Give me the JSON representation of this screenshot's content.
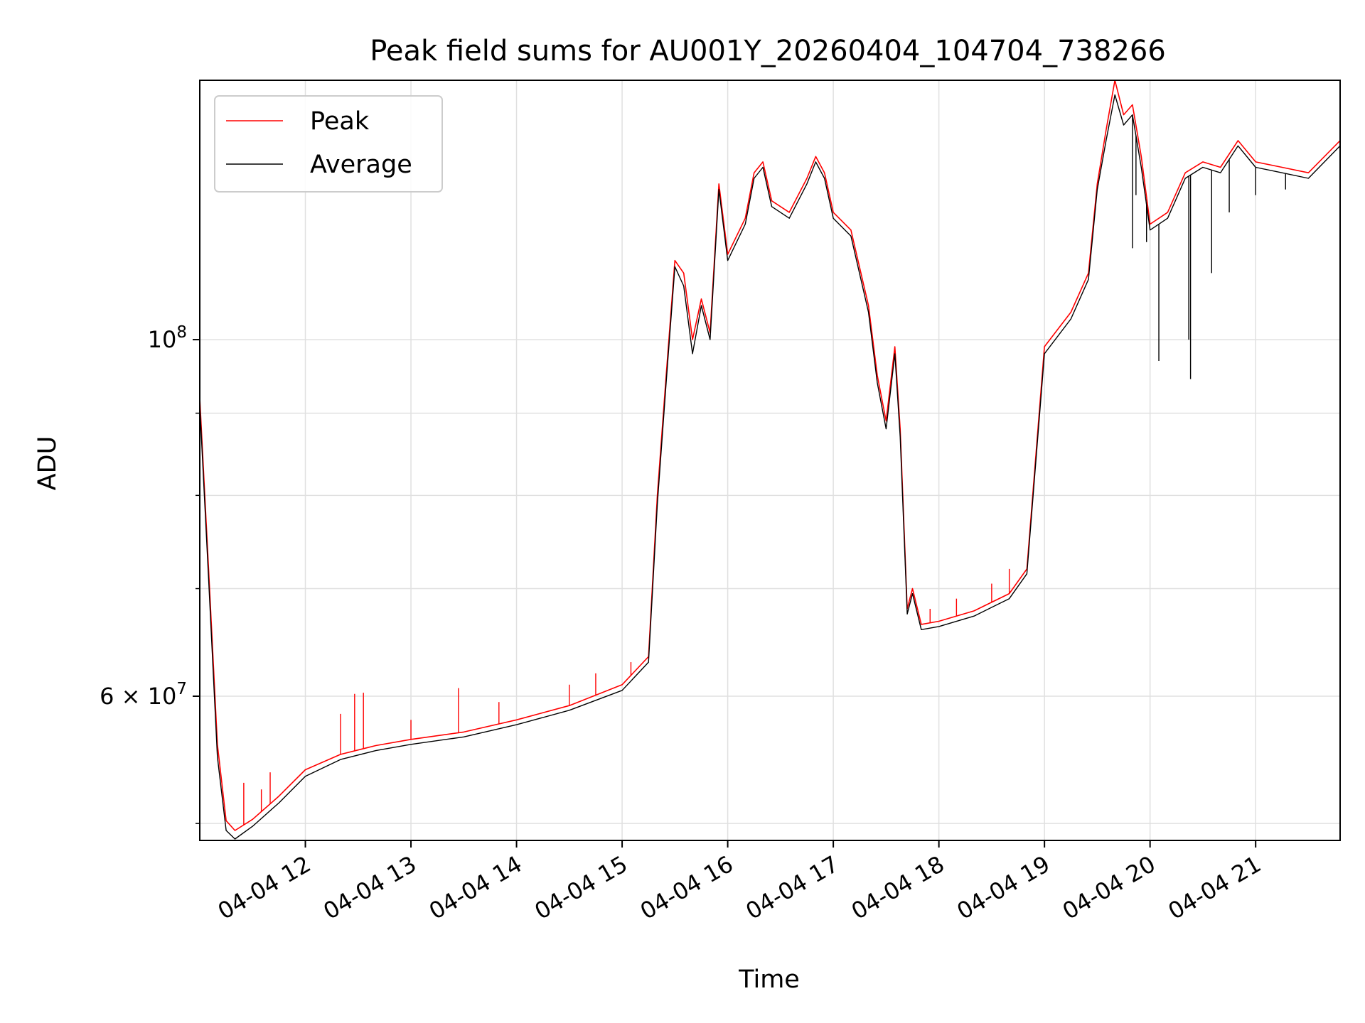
{
  "chart_data": {
    "type": "line",
    "title": "Peak field sums for AU001Y_20260404_104704_738266",
    "xlabel": "Time",
    "ylabel": "ADU",
    "yscale": "log",
    "xlim": [
      "2026-04-04 11:00",
      "2026-04-04 21:48"
    ],
    "ylim": [
      48800000,
      145000000
    ],
    "grid": true,
    "legend_position": "top-left",
    "x_ticks": [
      "04-04 12",
      "04-04 13",
      "04-04 14",
      "04-04 15",
      "04-04 16",
      "04-04 17",
      "04-04 18",
      "04-04 19",
      "04-04 20",
      "04-04 21"
    ],
    "y_major_ticks": [
      {
        "value": 100000000,
        "base": "10",
        "exp": "8"
      },
      {
        "value": 60000000,
        "coef": "6",
        "base": "10",
        "exp": "7"
      }
    ],
    "y_minor_ticks": [
      50000000,
      70000000,
      80000000,
      90000000
    ],
    "series": [
      {
        "name": "Peak",
        "color": "#ff0000",
        "points": [
          [
            "2026-04-04 11:00",
            92000000
          ],
          [
            "2026-04-04 11:05",
            72000000
          ],
          [
            "2026-04-04 11:10",
            56000000
          ],
          [
            "2026-04-04 11:15",
            50200000
          ],
          [
            "2026-04-04 11:20",
            49500000
          ],
          [
            "2026-04-04 11:30",
            50300000
          ],
          [
            "2026-04-04 11:45",
            52000000
          ],
          [
            "2026-04-04 12:00",
            54000000
          ],
          [
            "2026-04-04 12:20",
            55200000
          ],
          [
            "2026-04-04 12:40",
            55900000
          ],
          [
            "2026-04-04 13:00",
            56400000
          ],
          [
            "2026-04-04 13:30",
            57000000
          ],
          [
            "2026-04-04 14:00",
            58000000
          ],
          [
            "2026-04-04 14:30",
            59200000
          ],
          [
            "2026-04-04 15:00",
            61000000
          ],
          [
            "2026-04-04 15:15",
            63500000
          ],
          [
            "2026-04-04 15:20",
            80000000
          ],
          [
            "2026-04-04 15:25",
            95000000
          ],
          [
            "2026-04-04 15:30",
            112000000
          ],
          [
            "2026-04-04 15:35",
            110000000
          ],
          [
            "2026-04-04 15:40",
            100000000
          ],
          [
            "2026-04-04 15:45",
            106000000
          ],
          [
            "2026-04-04 15:50",
            101000000
          ],
          [
            "2026-04-04 15:55",
            125000000
          ],
          [
            "2026-04-04 16:00",
            113000000
          ],
          [
            "2026-04-04 16:10",
            119000000
          ],
          [
            "2026-04-04 16:15",
            127000000
          ],
          [
            "2026-04-04 16:20",
            129000000
          ],
          [
            "2026-04-04 16:25",
            122000000
          ],
          [
            "2026-04-04 16:35",
            120000000
          ],
          [
            "2026-04-04 16:45",
            126000000
          ],
          [
            "2026-04-04 16:50",
            130000000
          ],
          [
            "2026-04-04 16:55",
            127000000
          ],
          [
            "2026-04-04 17:00",
            120000000
          ],
          [
            "2026-04-04 17:10",
            117000000
          ],
          [
            "2026-04-04 17:20",
            105000000
          ],
          [
            "2026-04-04 17:25",
            95000000
          ],
          [
            "2026-04-04 17:30",
            89000000
          ],
          [
            "2026-04-04 17:35",
            99000000
          ],
          [
            "2026-04-04 17:38",
            88000000
          ],
          [
            "2026-04-04 17:42",
            68000000
          ],
          [
            "2026-04-04 17:45",
            70000000
          ],
          [
            "2026-04-04 17:50",
            66500000
          ],
          [
            "2026-04-04 18:00",
            66800000
          ],
          [
            "2026-04-04 18:20",
            67800000
          ],
          [
            "2026-04-04 18:40",
            69500000
          ],
          [
            "2026-04-04 18:50",
            72000000
          ],
          [
            "2026-04-04 19:00",
            99000000
          ],
          [
            "2026-04-04 19:15",
            104000000
          ],
          [
            "2026-04-04 19:25",
            110000000
          ],
          [
            "2026-04-04 19:30",
            125000000
          ],
          [
            "2026-04-04 19:35",
            135000000
          ],
          [
            "2026-04-04 19:40",
            145000000
          ],
          [
            "2026-04-04 19:45",
            138000000
          ],
          [
            "2026-04-04 19:50",
            140000000
          ],
          [
            "2026-04-04 19:55",
            130000000
          ],
          [
            "2026-04-04 20:00",
            118000000
          ],
          [
            "2026-04-04 20:10",
            120000000
          ],
          [
            "2026-04-04 20:20",
            127000000
          ],
          [
            "2026-04-04 20:30",
            129000000
          ],
          [
            "2026-04-04 20:40",
            128000000
          ],
          [
            "2026-04-04 20:50",
            133000000
          ],
          [
            "2026-04-04 21:00",
            129000000
          ],
          [
            "2026-04-04 21:15",
            128000000
          ],
          [
            "2026-04-04 21:30",
            127000000
          ],
          [
            "2026-04-04 21:48",
            133000000
          ]
        ]
      },
      {
        "name": "Average",
        "color": "#000000",
        "points": [
          [
            "2026-04-04 11:00",
            91000000
          ],
          [
            "2026-04-04 11:05",
            71000000
          ],
          [
            "2026-04-04 11:10",
            55000000
          ],
          [
            "2026-04-04 11:15",
            49500000
          ],
          [
            "2026-04-04 11:20",
            48900000
          ],
          [
            "2026-04-04 11:30",
            49800000
          ],
          [
            "2026-04-04 11:45",
            51500000
          ],
          [
            "2026-04-04 12:00",
            53500000
          ],
          [
            "2026-04-04 12:20",
            54800000
          ],
          [
            "2026-04-04 12:40",
            55500000
          ],
          [
            "2026-04-04 13:00",
            56000000
          ],
          [
            "2026-04-04 13:30",
            56600000
          ],
          [
            "2026-04-04 14:00",
            57600000
          ],
          [
            "2026-04-04 14:30",
            58800000
          ],
          [
            "2026-04-04 15:00",
            60500000
          ],
          [
            "2026-04-04 15:15",
            63000000
          ],
          [
            "2026-04-04 15:20",
            79000000
          ],
          [
            "2026-04-04 15:25",
            94000000
          ],
          [
            "2026-04-04 15:30",
            111000000
          ],
          [
            "2026-04-04 15:35",
            108000000
          ],
          [
            "2026-04-04 15:40",
            98000000
          ],
          [
            "2026-04-04 15:45",
            105000000
          ],
          [
            "2026-04-04 15:50",
            100000000
          ],
          [
            "2026-04-04 15:55",
            124000000
          ],
          [
            "2026-04-04 16:00",
            112000000
          ],
          [
            "2026-04-04 16:10",
            118000000
          ],
          [
            "2026-04-04 16:15",
            126000000
          ],
          [
            "2026-04-04 16:20",
            128000000
          ],
          [
            "2026-04-04 16:25",
            121000000
          ],
          [
            "2026-04-04 16:35",
            119000000
          ],
          [
            "2026-04-04 16:45",
            125000000
          ],
          [
            "2026-04-04 16:50",
            129000000
          ],
          [
            "2026-04-04 16:55",
            126000000
          ],
          [
            "2026-04-04 17:00",
            119000000
          ],
          [
            "2026-04-04 17:10",
            116000000
          ],
          [
            "2026-04-04 17:20",
            104000000
          ],
          [
            "2026-04-04 17:25",
            94000000
          ],
          [
            "2026-04-04 17:30",
            88000000
          ],
          [
            "2026-04-04 17:35",
            98000000
          ],
          [
            "2026-04-04 17:38",
            87000000
          ],
          [
            "2026-04-04 17:42",
            67500000
          ],
          [
            "2026-04-04 17:45",
            69500000
          ],
          [
            "2026-04-04 17:50",
            66000000
          ],
          [
            "2026-04-04 18:00",
            66300000
          ],
          [
            "2026-04-04 18:20",
            67300000
          ],
          [
            "2026-04-04 18:40",
            69000000
          ],
          [
            "2026-04-04 18:50",
            71500000
          ],
          [
            "2026-04-04 19:00",
            98000000
          ],
          [
            "2026-04-04 19:15",
            103000000
          ],
          [
            "2026-04-04 19:25",
            109000000
          ],
          [
            "2026-04-04 19:30",
            124000000
          ],
          [
            "2026-04-04 19:35",
            133000000
          ],
          [
            "2026-04-04 19:40",
            142000000
          ],
          [
            "2026-04-04 19:45",
            136000000
          ],
          [
            "2026-04-04 19:50",
            138000000
          ],
          [
            "2026-04-04 19:55",
            128000000
          ],
          [
            "2026-04-04 20:00",
            117000000
          ],
          [
            "2026-04-04 20:10",
            119000000
          ],
          [
            "2026-04-04 20:20",
            126000000
          ],
          [
            "2026-04-04 20:30",
            128000000
          ],
          [
            "2026-04-04 20:40",
            127000000
          ],
          [
            "2026-04-04 20:50",
            132000000
          ],
          [
            "2026-04-04 21:00",
            128000000
          ],
          [
            "2026-04-04 21:15",
            127000000
          ],
          [
            "2026-04-04 21:30",
            126000000
          ],
          [
            "2026-04-04 21:48",
            132000000
          ]
        ]
      }
    ],
    "spikes": {
      "peak_up": [
        [
          "2026-04-04 11:25",
          53000000
        ],
        [
          "2026-04-04 11:35",
          52500000
        ],
        [
          "2026-04-04 11:40",
          53800000
        ],
        [
          "2026-04-04 12:20",
          58500000
        ],
        [
          "2026-04-04 12:28",
          60200000
        ],
        [
          "2026-04-04 12:33",
          60300000
        ],
        [
          "2026-04-04 13:00",
          58000000
        ],
        [
          "2026-04-04 13:27",
          60700000
        ],
        [
          "2026-04-04 13:50",
          59500000
        ],
        [
          "2026-04-04 14:30",
          61000000
        ],
        [
          "2026-04-04 14:45",
          62000000
        ],
        [
          "2026-04-04 15:05",
          63000000
        ],
        [
          "2026-04-04 17:55",
          68000000
        ],
        [
          "2026-04-04 18:10",
          69000000
        ],
        [
          "2026-04-04 18:30",
          70500000
        ],
        [
          "2026-04-04 18:40",
          72000000
        ]
      ],
      "average_down": [
        [
          "2026-04-04 19:50",
          114000000
        ],
        [
          "2026-04-04 19:52",
          123000000
        ],
        [
          "2026-04-04 19:58",
          115000000
        ],
        [
          "2026-04-04 20:05",
          97000000
        ],
        [
          "2026-04-04 20:22",
          100000000
        ],
        [
          "2026-04-04 20:23",
          94500000
        ],
        [
          "2026-04-04 20:35",
          110000000
        ],
        [
          "2026-04-04 20:45",
          120000000
        ],
        [
          "2026-04-04 21:00",
          123000000
        ],
        [
          "2026-04-04 21:17",
          124000000
        ]
      ]
    }
  }
}
